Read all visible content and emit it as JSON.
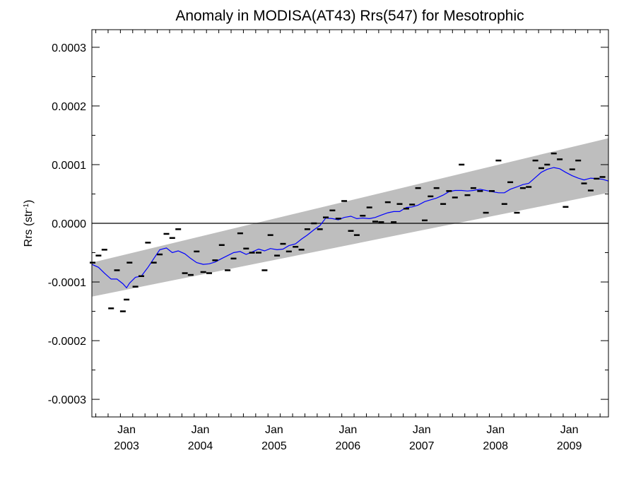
{
  "chart_data": {
    "type": "scatter",
    "title": "Anomaly in MODISA(AT43) Rrs(547) for Mesotrophic",
    "xlabel": "",
    "ylabel": "Rrs (str",
    "ylabel_superscript": "-1",
    "ylabel_suffix": ")",
    "xlim": [
      2002.53,
      2009.53
    ],
    "ylim": [
      -0.00033,
      0.00033
    ],
    "yticks": [
      {
        "value": 0.0003,
        "label": "0.0003"
      },
      {
        "value": 0.0002,
        "label": "0.0002"
      },
      {
        "value": 0.0001,
        "label": "0.0001"
      },
      {
        "value": 0.0,
        "label": "0.0000"
      },
      {
        "value": -0.0001,
        "label": "-0.0001"
      },
      {
        "value": -0.0002,
        "label": "-0.0002"
      },
      {
        "value": -0.0003,
        "label": "-0.0003"
      }
    ],
    "xticks": [
      {
        "value": 2003.0,
        "month": "Jan",
        "year": "2003"
      },
      {
        "value": 2004.0,
        "month": "Jan",
        "year": "2004"
      },
      {
        "value": 2005.0,
        "month": "Jan",
        "year": "2005"
      },
      {
        "value": 2006.0,
        "month": "Jan",
        "year": "2006"
      },
      {
        "value": 2007.0,
        "month": "Jan",
        "year": "2007"
      },
      {
        "value": 2008.0,
        "month": "Jan",
        "year": "2008"
      },
      {
        "value": 2009.0,
        "month": "Jan",
        "year": "2009"
      }
    ],
    "band": {
      "color": "#bebebe",
      "upper": [
        [
          2002.53,
          -6.7e-05
        ],
        [
          2009.53,
          0.000145
        ]
      ],
      "lower": [
        [
          2002.53,
          -0.000125
        ],
        [
          2009.53,
          5.2e-05
        ]
      ]
    },
    "zero_line": 0.0,
    "series": [
      {
        "kind": "points",
        "color": "#000000",
        "points": [
          [
            2002.54,
            -6.7e-05
          ],
          [
            2002.62,
            -5.5e-05
          ],
          [
            2002.7,
            -4.5e-05
          ],
          [
            2002.79,
            -0.000145
          ],
          [
            2002.87,
            -8e-05
          ],
          [
            2002.95,
            -0.00015
          ],
          [
            2003.0,
            -0.00013
          ],
          [
            2003.04,
            -6.7e-05
          ],
          [
            2003.12,
            -0.000108
          ],
          [
            2003.2,
            -9e-05
          ],
          [
            2003.29,
            -3.3e-05
          ],
          [
            2003.37,
            -6.7e-05
          ],
          [
            2003.45,
            -5.3e-05
          ],
          [
            2003.54,
            -1.8e-05
          ],
          [
            2003.62,
            -2.5e-05
          ],
          [
            2003.7,
            -1e-05
          ],
          [
            2003.79,
            -8.5e-05
          ],
          [
            2003.87,
            -8.8e-05
          ],
          [
            2003.95,
            -4.8e-05
          ],
          [
            2004.04,
            -8.3e-05
          ],
          [
            2004.12,
            -8.5e-05
          ],
          [
            2004.2,
            -6.3e-05
          ],
          [
            2004.29,
            -3.7e-05
          ],
          [
            2004.37,
            -8e-05
          ],
          [
            2004.45,
            -6e-05
          ],
          [
            2004.54,
            -1.7e-05
          ],
          [
            2004.62,
            -4.3e-05
          ],
          [
            2004.7,
            -5e-05
          ],
          [
            2004.79,
            -5e-05
          ],
          [
            2004.87,
            -8e-05
          ],
          [
            2004.95,
            -2e-05
          ],
          [
            2005.04,
            -5.5e-05
          ],
          [
            2005.12,
            -3.5e-05
          ],
          [
            2005.2,
            -4.8e-05
          ],
          [
            2005.29,
            -4e-05
          ],
          [
            2005.37,
            -4.5e-05
          ],
          [
            2005.45,
            -1e-05
          ],
          [
            2005.54,
            0.0
          ],
          [
            2005.62,
            -1e-05
          ],
          [
            2005.7,
            1e-05
          ],
          [
            2005.79,
            2.2e-05
          ],
          [
            2005.87,
            8e-06
          ],
          [
            2005.95,
            3.8e-05
          ],
          [
            2006.04,
            -1.3e-05
          ],
          [
            2006.12,
            -2e-05
          ],
          [
            2006.2,
            1.3e-05
          ],
          [
            2006.29,
            2.7e-05
          ],
          [
            2006.37,
            3e-06
          ],
          [
            2006.45,
            2e-06
          ],
          [
            2006.54,
            3.6e-05
          ],
          [
            2006.62,
            2e-06
          ],
          [
            2006.7,
            3.3e-05
          ],
          [
            2006.79,
            2.5e-05
          ],
          [
            2006.87,
            3.2e-05
          ],
          [
            2006.95,
            6e-05
          ],
          [
            2007.04,
            5e-06
          ],
          [
            2007.12,
            4.6e-05
          ],
          [
            2007.2,
            6e-05
          ],
          [
            2007.29,
            3.3e-05
          ],
          [
            2007.37,
            5.5e-05
          ],
          [
            2007.45,
            4.4e-05
          ],
          [
            2007.54,
            0.0001
          ],
          [
            2007.62,
            4.8e-05
          ],
          [
            2007.7,
            6e-05
          ],
          [
            2007.79,
            5.5e-05
          ],
          [
            2007.87,
            1.8e-05
          ],
          [
            2007.95,
            5.5e-05
          ],
          [
            2008.04,
            0.000107
          ],
          [
            2008.12,
            3.3e-05
          ],
          [
            2008.2,
            7e-05
          ],
          [
            2008.29,
            1.8e-05
          ],
          [
            2008.37,
            6e-05
          ],
          [
            2008.45,
            6.2e-05
          ],
          [
            2008.54,
            0.000107
          ],
          [
            2008.62,
            9.4e-05
          ],
          [
            2008.7,
            0.0001
          ],
          [
            2008.79,
            0.000119
          ],
          [
            2008.87,
            0.000109
          ],
          [
            2008.95,
            2.8e-05
          ],
          [
            2009.04,
            9.2e-05
          ],
          [
            2009.12,
            0.000107
          ],
          [
            2009.2,
            6.8e-05
          ],
          [
            2009.29,
            5.6e-05
          ],
          [
            2009.37,
            7.6e-05
          ],
          [
            2009.45,
            7.9e-05
          ]
        ]
      },
      {
        "kind": "line",
        "color": "#0000ff",
        "points": [
          [
            2002.53,
            -7e-05
          ],
          [
            2002.62,
            -7.5e-05
          ],
          [
            2002.7,
            -8.5e-05
          ],
          [
            2002.79,
            -9.5e-05
          ],
          [
            2002.87,
            -9.5e-05
          ],
          [
            2002.95,
            -0.000103
          ],
          [
            2003.0,
            -0.00011
          ],
          [
            2003.04,
            -0.000102
          ],
          [
            2003.12,
            -9.2e-05
          ],
          [
            2003.2,
            -9e-05
          ],
          [
            2003.29,
            -7.5e-05
          ],
          [
            2003.37,
            -6e-05
          ],
          [
            2003.45,
            -4.5e-05
          ],
          [
            2003.54,
            -4.2e-05
          ],
          [
            2003.62,
            -5e-05
          ],
          [
            2003.7,
            -4.7e-05
          ],
          [
            2003.79,
            -5.2e-05
          ],
          [
            2003.87,
            -6e-05
          ],
          [
            2003.95,
            -6.7e-05
          ],
          [
            2004.04,
            -7e-05
          ],
          [
            2004.12,
            -6.9e-05
          ],
          [
            2004.2,
            -6.6e-05
          ],
          [
            2004.29,
            -6e-05
          ],
          [
            2004.37,
            -5.5e-05
          ],
          [
            2004.45,
            -5e-05
          ],
          [
            2004.54,
            -4.8e-05
          ],
          [
            2004.62,
            -5.3e-05
          ],
          [
            2004.7,
            -4.9e-05
          ],
          [
            2004.79,
            -4.4e-05
          ],
          [
            2004.87,
            -4.7e-05
          ],
          [
            2004.95,
            -4.3e-05
          ],
          [
            2005.04,
            -4.5e-05
          ],
          [
            2005.12,
            -4.4e-05
          ],
          [
            2005.2,
            -3.8e-05
          ],
          [
            2005.29,
            -3.5e-05
          ],
          [
            2005.37,
            -2.7e-05
          ],
          [
            2005.45,
            -2e-05
          ],
          [
            2005.54,
            -1.1e-05
          ],
          [
            2005.62,
            -4e-06
          ],
          [
            2005.7,
            9e-06
          ],
          [
            2005.79,
            8e-06
          ],
          [
            2005.87,
            6e-06
          ],
          [
            2005.95,
            1e-05
          ],
          [
            2006.04,
            1.2e-05
          ],
          [
            2006.12,
            8e-06
          ],
          [
            2006.2,
            9e-06
          ],
          [
            2006.29,
            8e-06
          ],
          [
            2006.37,
            1e-05
          ],
          [
            2006.45,
            1.4e-05
          ],
          [
            2006.54,
            1.8e-05
          ],
          [
            2006.62,
            2e-05
          ],
          [
            2006.7,
            2e-05
          ],
          [
            2006.79,
            2.7e-05
          ],
          [
            2006.87,
            2.8e-05
          ],
          [
            2006.95,
            3.1e-05
          ],
          [
            2007.04,
            3.7e-05
          ],
          [
            2007.12,
            4e-05
          ],
          [
            2007.2,
            4.3e-05
          ],
          [
            2007.29,
            4.8e-05
          ],
          [
            2007.37,
            5.4e-05
          ],
          [
            2007.45,
            5.6e-05
          ],
          [
            2007.54,
            5.6e-05
          ],
          [
            2007.62,
            5.5e-05
          ],
          [
            2007.7,
            5.6e-05
          ],
          [
            2007.79,
            5.8e-05
          ],
          [
            2007.87,
            5.6e-05
          ],
          [
            2007.95,
            5.4e-05
          ],
          [
            2008.04,
            5.2e-05
          ],
          [
            2008.12,
            5.2e-05
          ],
          [
            2008.2,
            5.8e-05
          ],
          [
            2008.29,
            6.2e-05
          ],
          [
            2008.37,
            6.6e-05
          ],
          [
            2008.45,
            6.8e-05
          ],
          [
            2008.54,
            7.8e-05
          ],
          [
            2008.62,
            8.7e-05
          ],
          [
            2008.7,
            9.2e-05
          ],
          [
            2008.79,
            9.5e-05
          ],
          [
            2008.87,
            9.3e-05
          ],
          [
            2008.95,
            8.7e-05
          ],
          [
            2009.04,
            8.1e-05
          ],
          [
            2009.12,
            7.7e-05
          ],
          [
            2009.2,
            7.4e-05
          ],
          [
            2009.29,
            7.7e-05
          ],
          [
            2009.37,
            7.6e-05
          ],
          [
            2009.45,
            7.5e-05
          ],
          [
            2009.53,
            7.2e-05
          ]
        ]
      }
    ]
  }
}
